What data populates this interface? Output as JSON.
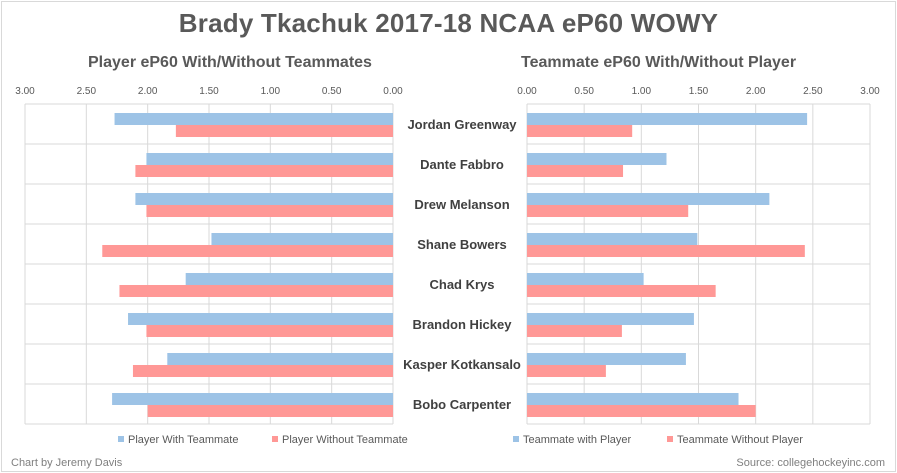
{
  "title": "Brady Tkachuk 2017-18 NCAA eP60 WOWY",
  "credit": "Chart by Jeremy Davis",
  "source": "Source: collegehockeyinc.com",
  "colors": {
    "with": "#9dc3e6",
    "without": "#ff9896",
    "grid": "#d9d9d9"
  },
  "chart_data": [
    {
      "type": "bar",
      "orientation": "horizontal",
      "title": "Player eP60 With/Without Teammates",
      "xlim": [
        0,
        3
      ],
      "x_reversed": true,
      "ticks": [
        "3.00",
        "2.50",
        "2.00",
        "1.50",
        "1.00",
        "0.50",
        "0.00"
      ],
      "grid": true,
      "legend_position": "bottom",
      "categories": [
        "Jordan Greenway",
        "Dante Fabbro",
        "Drew Melanson",
        "Shane Bowers",
        "Chad Krys",
        "Brandon Hickey",
        "Kasper Kotkansalo",
        "Bobo Carpenter"
      ],
      "series": [
        {
          "name": "Player With Teammate",
          "values": [
            2.27,
            2.01,
            2.1,
            1.48,
            1.69,
            2.16,
            1.84,
            2.29
          ]
        },
        {
          "name": "Player Without Teammate",
          "values": [
            1.77,
            2.1,
            2.01,
            2.37,
            2.23,
            2.01,
            2.12,
            2.0
          ]
        }
      ]
    },
    {
      "type": "bar",
      "orientation": "horizontal",
      "title": "Teammate eP60 With/Without Player",
      "xlim": [
        0,
        3
      ],
      "ticks": [
        "0.00",
        "0.50",
        "1.00",
        "1.50",
        "2.00",
        "2.50",
        "3.00"
      ],
      "grid": true,
      "legend_position": "bottom",
      "categories": [
        "Jordan Greenway",
        "Dante Fabbro",
        "Drew Melanson",
        "Shane Bowers",
        "Chad Krys",
        "Brandon Hickey",
        "Kasper Kotkansalo",
        "Bobo Carpenter"
      ],
      "series": [
        {
          "name": "Teammate with Player",
          "values": [
            2.45,
            1.22,
            2.12,
            1.49,
            1.02,
            1.46,
            1.39,
            1.85
          ]
        },
        {
          "name": "Teammate Without Player",
          "values": [
            0.92,
            0.84,
            1.41,
            2.43,
            1.65,
            0.83,
            0.69,
            2.0
          ]
        }
      ]
    }
  ]
}
